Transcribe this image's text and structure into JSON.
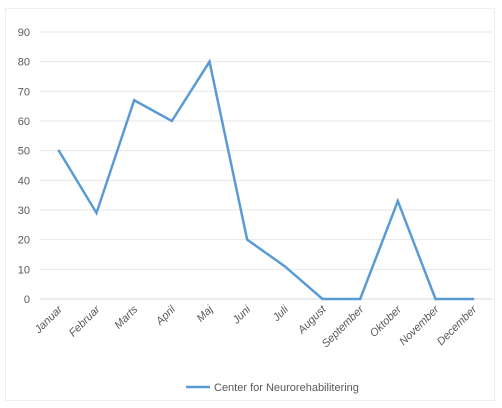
{
  "chart_data": {
    "type": "line",
    "title": "",
    "xlabel": "",
    "ylabel": "",
    "ylim": [
      0,
      90
    ],
    "y_ticks": [
      0,
      10,
      20,
      30,
      40,
      50,
      60,
      70,
      80,
      90
    ],
    "grid": true,
    "legend_position": "bottom",
    "categories": [
      "Januar",
      "Februar",
      "Marts",
      "April",
      "Maj",
      "Juni",
      "Juli",
      "August",
      "September",
      "Oktober",
      "November",
      "December"
    ],
    "series": [
      {
        "name": "Center for Neurorehabilitering",
        "color": "#5b9bd5",
        "values": [
          50,
          29,
          67,
          60,
          80,
          20,
          11,
          0,
          0,
          33,
          0,
          0
        ]
      }
    ]
  }
}
